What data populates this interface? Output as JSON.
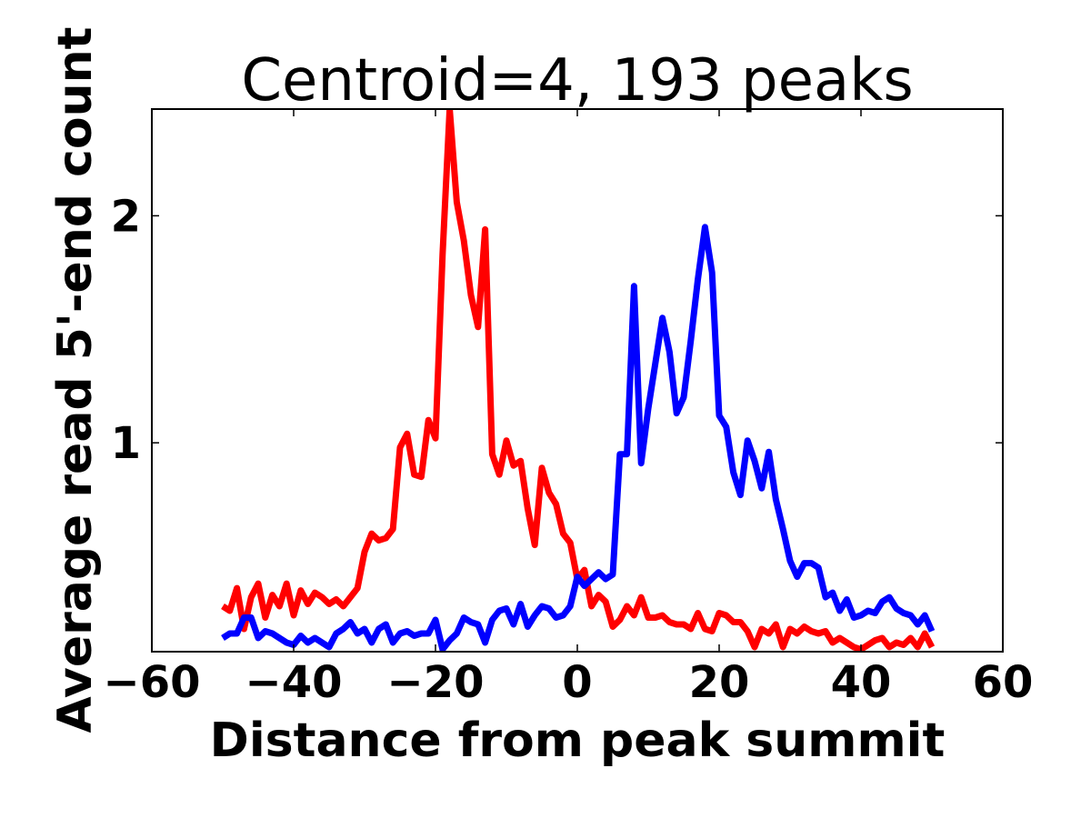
{
  "chart_data": {
    "type": "line",
    "title": "Centroid=4, 193 peaks",
    "xlabel": "Distance from peak summit",
    "ylabel": "Average read 5'-end count",
    "xlim": [
      -60,
      60
    ],
    "ylim": [
      0.08,
      2.47
    ],
    "xticks": [
      -60,
      -40,
      -20,
      0,
      20,
      40,
      60
    ],
    "xtick_labels": [
      "−60",
      "−40",
      "−20",
      "0",
      "20",
      "40",
      "60"
    ],
    "yticks": [
      1,
      2
    ],
    "ytick_labels": [
      "1",
      "2"
    ],
    "grid": false,
    "x_start": -50,
    "x_step": 1,
    "series": [
      {
        "name": "red",
        "color": "#ff0000",
        "values": [
          0.28,
          0.26,
          0.36,
          0.18,
          0.32,
          0.38,
          0.23,
          0.33,
          0.28,
          0.38,
          0.24,
          0.35,
          0.29,
          0.34,
          0.32,
          0.29,
          0.31,
          0.28,
          0.32,
          0.36,
          0.52,
          0.6,
          0.57,
          0.58,
          0.62,
          0.98,
          1.04,
          0.86,
          0.85,
          1.1,
          1.02,
          1.83,
          2.47,
          2.06,
          1.89,
          1.65,
          1.51,
          1.94,
          0.95,
          0.86,
          1.01,
          0.9,
          0.92,
          0.71,
          0.55,
          0.89,
          0.78,
          0.73,
          0.6,
          0.56,
          0.4,
          0.44,
          0.28,
          0.33,
          0.3,
          0.19,
          0.22,
          0.28,
          0.24,
          0.32,
          0.23,
          0.23,
          0.24,
          0.21,
          0.2,
          0.2,
          0.18,
          0.25,
          0.18,
          0.17,
          0.25,
          0.24,
          0.21,
          0.21,
          0.17,
          0.1,
          0.18,
          0.16,
          0.2,
          0.1,
          0.18,
          0.16,
          0.19,
          0.17,
          0.16,
          0.17,
          0.12,
          0.14,
          0.12,
          0.1,
          0.09,
          0.11,
          0.13,
          0.14,
          0.1,
          0.12,
          0.11,
          0.14,
          0.1,
          0.16,
          0.1
        ]
      },
      {
        "name": "blue",
        "color": "#0000ff",
        "values": [
          0.14,
          0.16,
          0.16,
          0.23,
          0.23,
          0.14,
          0.17,
          0.16,
          0.14,
          0.12,
          0.11,
          0.15,
          0.12,
          0.14,
          0.12,
          0.1,
          0.16,
          0.18,
          0.21,
          0.16,
          0.18,
          0.12,
          0.18,
          0.2,
          0.12,
          0.16,
          0.17,
          0.15,
          0.16,
          0.16,
          0.22,
          0.09,
          0.13,
          0.16,
          0.23,
          0.21,
          0.2,
          0.12,
          0.22,
          0.26,
          0.27,
          0.2,
          0.29,
          0.19,
          0.24,
          0.28,
          0.27,
          0.23,
          0.24,
          0.28,
          0.41,
          0.37,
          0.4,
          0.43,
          0.4,
          0.42,
          0.95,
          0.95,
          1.69,
          0.91,
          1.15,
          1.35,
          1.55,
          1.4,
          1.13,
          1.2,
          1.45,
          1.72,
          1.95,
          1.75,
          1.12,
          1.07,
          0.87,
          0.77,
          1.01,
          0.92,
          0.8,
          0.96,
          0.75,
          0.62,
          0.48,
          0.41,
          0.47,
          0.47,
          0.45,
          0.32,
          0.34,
          0.26,
          0.31,
          0.23,
          0.24,
          0.26,
          0.25,
          0.3,
          0.32,
          0.27,
          0.25,
          0.24,
          0.2,
          0.24,
          0.17
        ]
      }
    ]
  }
}
